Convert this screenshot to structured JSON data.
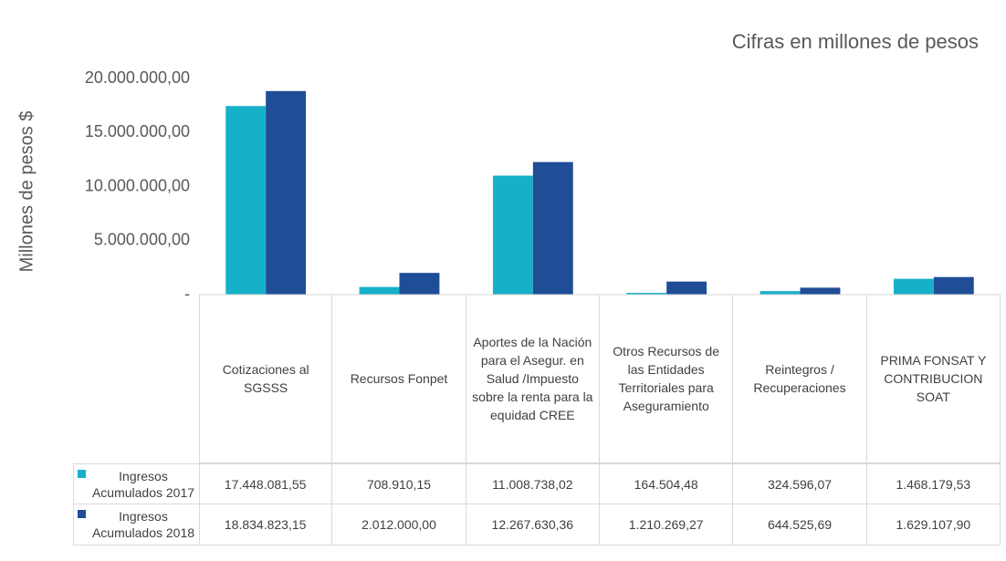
{
  "chart_data": {
    "type": "bar",
    "annotation": "Cifras en millones de pesos",
    "y_label": "Millones de pesos $",
    "categories": [
      "Cotizaciones al SGSSS",
      "Recursos Fonpet",
      "Aportes de la Nación para el Asegur. en Salud /Impuesto sobre la renta para la equidad CREE",
      "Otros Recursos de las Entidades Territoriales para Aseguramiento",
      "Reintegros / Recuperaciones",
      "PRIMA FONSAT Y CONTRIBUCION SOAT"
    ],
    "series": [
      {
        "name": "Ingresos Acumulados 2017",
        "color": "#17b0c9",
        "values": [
          17448081.55,
          708910.15,
          11008738.02,
          164504.48,
          324596.07,
          1468179.53
        ],
        "value_labels": [
          "17.448.081,55",
          "708.910,15",
          "11.008.738,02",
          "164.504,48",
          "324.596,07",
          "1.468.179,53"
        ]
      },
      {
        "name": "Ingresos Acumulados 2018",
        "color": "#1f4e97",
        "values": [
          18834823.15,
          2012000.0,
          12267630.36,
          1210269.27,
          644525.69,
          1629107.9
        ],
        "value_labels": [
          "18.834.823,15",
          "2.012.000,00",
          "12.267.630,36",
          "1.210.269,27",
          "644.525,69",
          "1.629.107,90"
        ]
      }
    ],
    "ylim": [
      0,
      20000000
    ],
    "yticks": [
      {
        "value": 0,
        "label": "-"
      },
      {
        "value": 5000000,
        "label": "5.000.000,00"
      },
      {
        "value": 10000000,
        "label": "10.000.000,00"
      },
      {
        "value": 15000000,
        "label": "15.000.000,00"
      },
      {
        "value": 20000000,
        "label": "20.000.000,00"
      }
    ],
    "grid": false
  }
}
